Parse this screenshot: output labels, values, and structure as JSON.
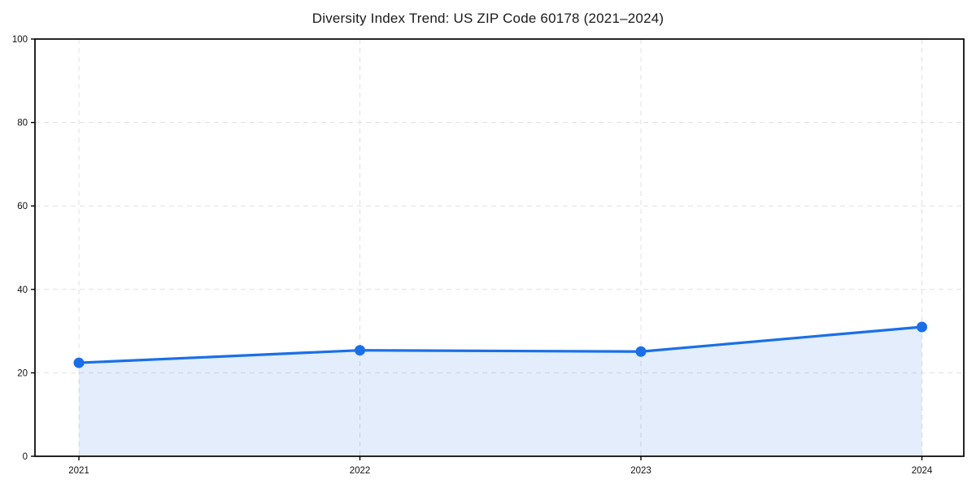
{
  "page": {
    "background": "#ffffff"
  },
  "chart_data": {
    "type": "area",
    "title": "Diversity Index Trend: US ZIP Code 60178 (2021–2024)",
    "x": [
      "2021",
      "2022",
      "2023",
      "2024"
    ],
    "series": [
      {
        "name": "Diversity Index",
        "values": [
          22.4,
          25.4,
          25.1,
          31.0
        ]
      }
    ],
    "values": [
      22.4,
      25.4,
      25.1,
      31.0
    ],
    "xlabel": "",
    "ylabel": "",
    "ylim": [
      0,
      100
    ],
    "yticks": [
      0,
      20,
      40,
      60,
      80,
      100
    ],
    "grid": true,
    "grid_style": "dashed",
    "legend": "none",
    "marker": "circle",
    "colors": {
      "line": "#1a6fe8",
      "marker": "#1a6fe8",
      "fill": "rgba(26,111,232,0.12)",
      "grid": "#e0e0e0",
      "axis": "#000000",
      "text": "#111111"
    }
  }
}
